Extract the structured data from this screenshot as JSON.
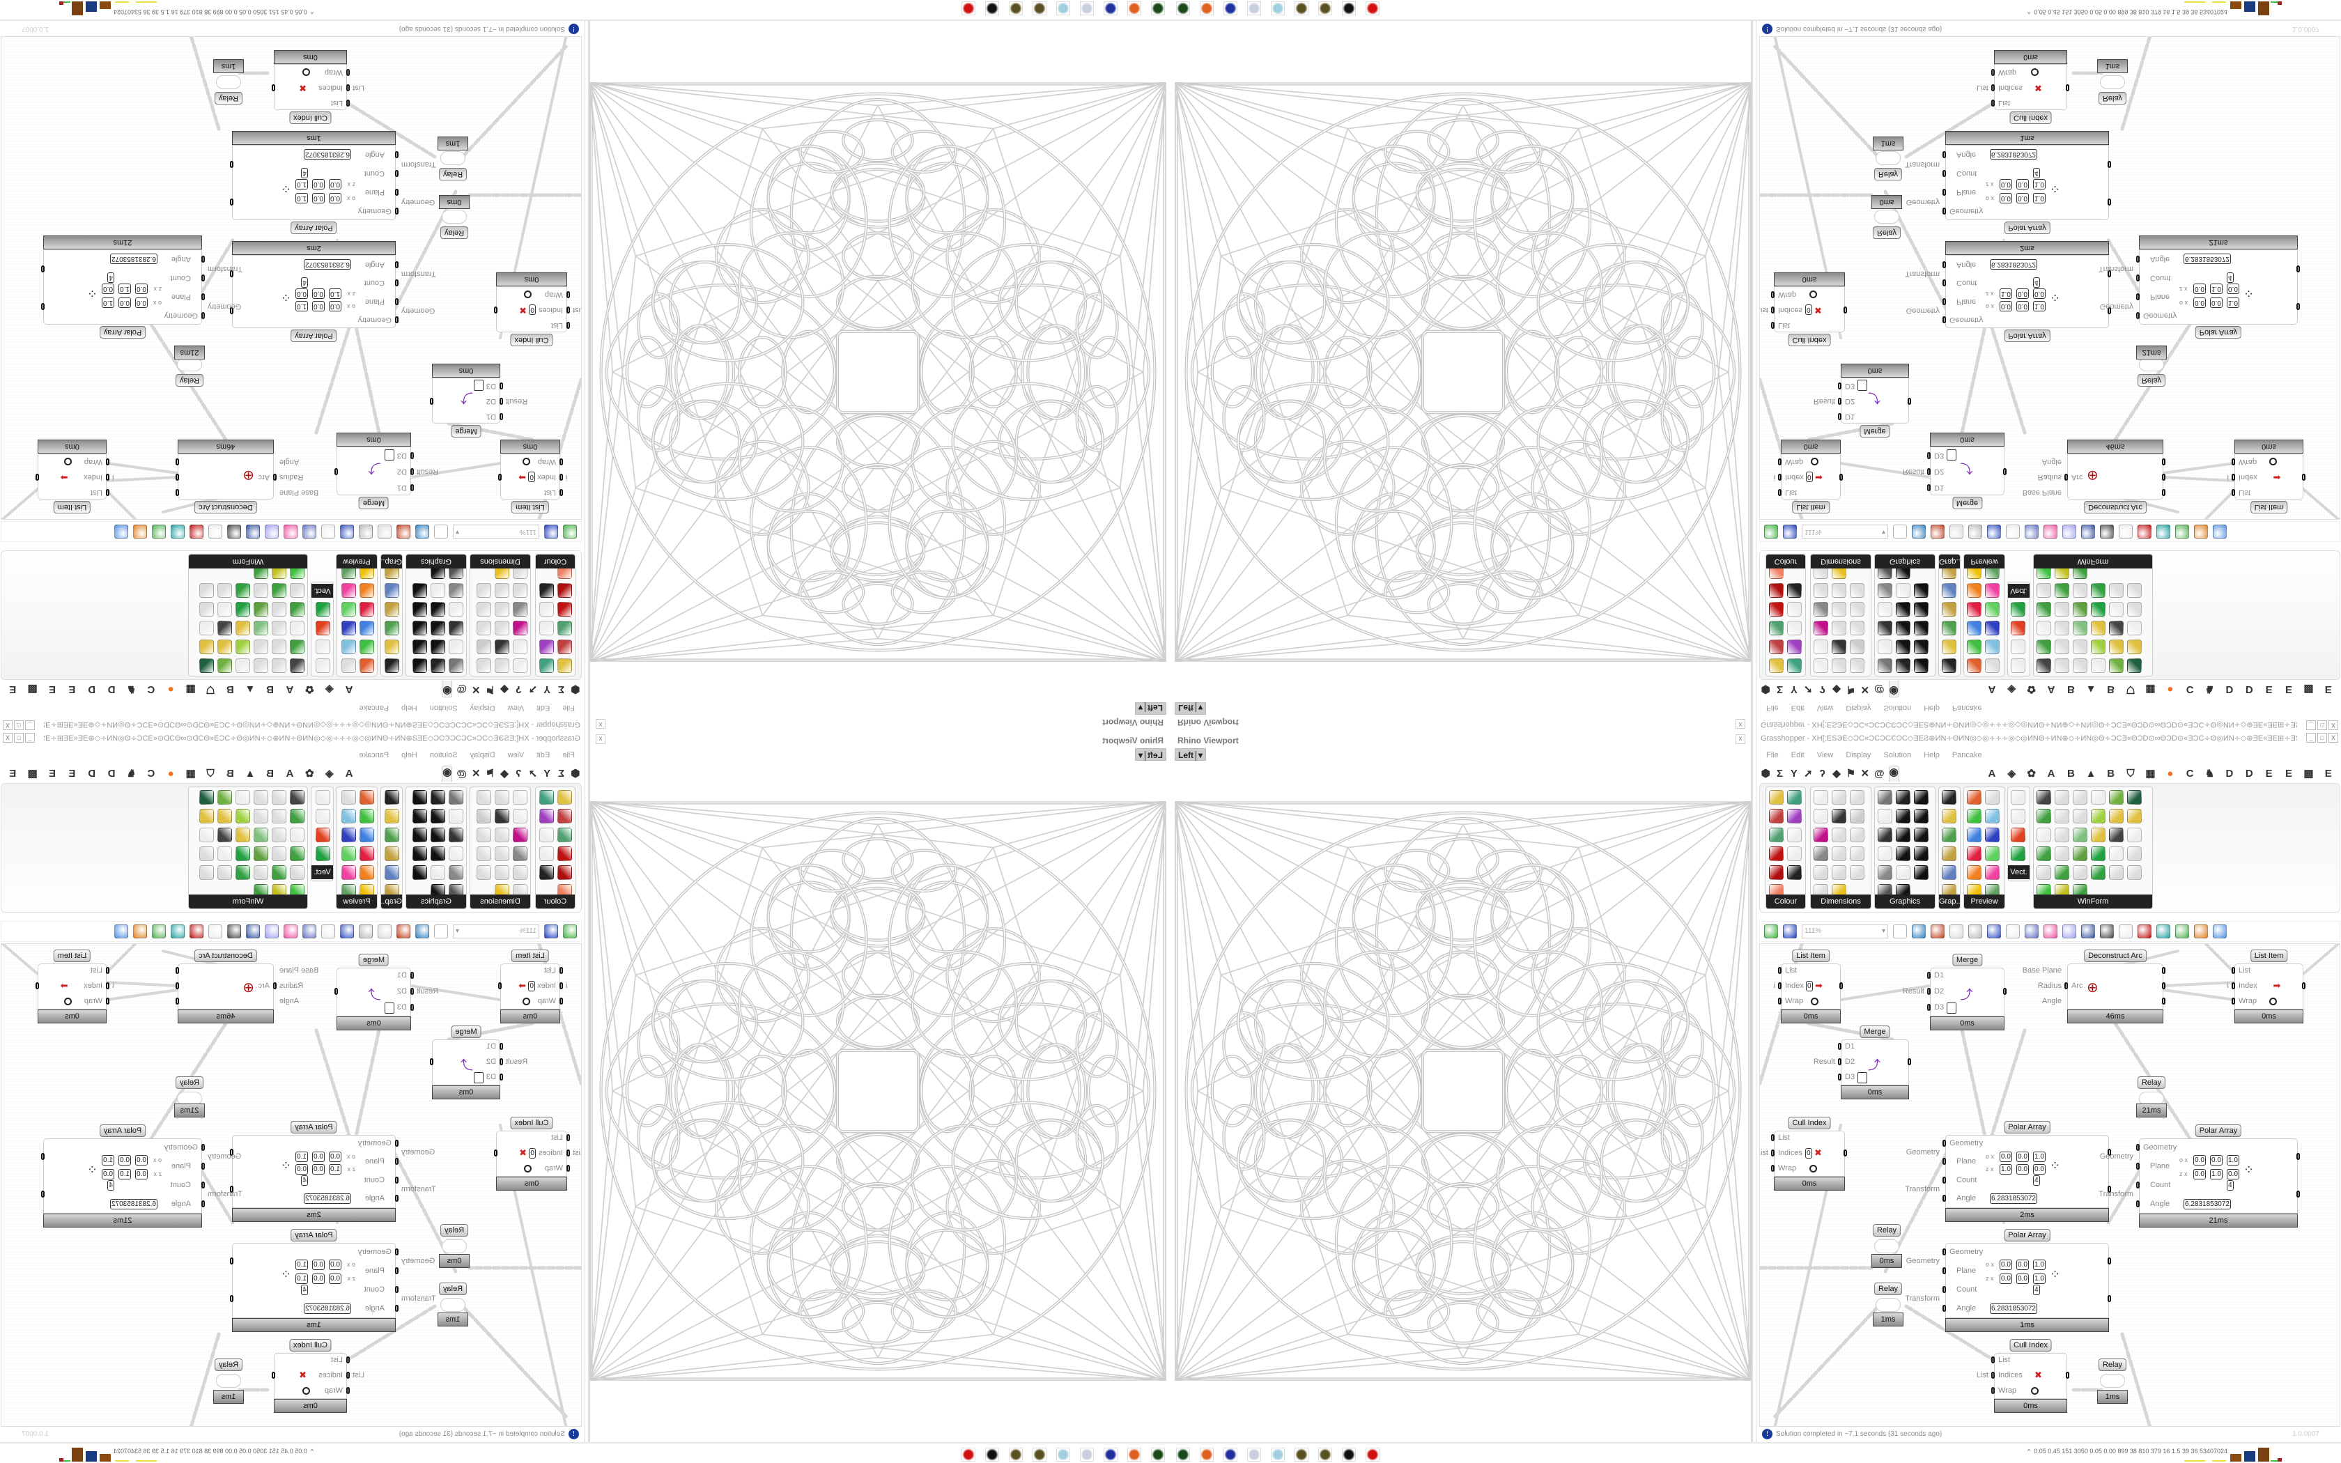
{
  "viewport": {
    "title": "Rhino Viewport",
    "view": "Left",
    "close": "x"
  },
  "grasshopper": {
    "title": "Grasshopper - XH[;ESЭE◇ƆC«ƆCƆC©ƆC◇ƎEƧ⊕ИN∻ΘИN◎◇◎∻∻∻◎◇◎ИNΘ∻ИN⊕◇∻ИN◎Θ∻ƆCƎ«ΘƆD⊙∞ΘƆD⊙«ƎƆC∻Θ◎ИN∻◇⊕ƎE«ƎE⊞∻ƎS∻⊞ƎE«ƎE⊕◇∻«ƆDƎE⊞∻∻ƆC...",
    "window_buttons": [
      "_",
      "□",
      "X"
    ],
    "menu": [
      "File",
      "Edit",
      "View",
      "Display",
      "Solution",
      "Help",
      "Pancake"
    ],
    "tabs": [
      {
        "icon": "hexagon",
        "glyph": "⬢"
      },
      {
        "icon": "sigma",
        "glyph": "Σ"
      },
      {
        "icon": "y-fork",
        "glyph": "Y"
      },
      {
        "icon": "arrow",
        "glyph": "➚"
      },
      {
        "icon": "hook",
        "glyph": "ʔ"
      },
      {
        "icon": "surface",
        "glyph": "◆"
      },
      {
        "icon": "flag",
        "glyph": "⚑"
      },
      {
        "icon": "cross",
        "glyph": "✕"
      },
      {
        "icon": "curl",
        "glyph": "@"
      },
      {
        "icon": "eye",
        "glyph": "◉",
        "active": true
      },
      {
        "icon": "letter-a",
        "glyph": "A"
      },
      {
        "icon": "gem",
        "glyph": "◈"
      },
      {
        "icon": "gear",
        "glyph": "✿"
      },
      {
        "icon": "letter-a",
        "glyph": "A"
      },
      {
        "icon": "letter-b",
        "glyph": "B"
      },
      {
        "icon": "mountain",
        "glyph": "▲"
      },
      {
        "icon": "letter-b",
        "glyph": "B"
      },
      {
        "icon": "shield",
        "glyph": "⛉"
      },
      {
        "icon": "grid",
        "glyph": "▦"
      },
      {
        "icon": "orange-circle",
        "glyph": "●",
        "color": "#f07020"
      },
      {
        "icon": "letter-c",
        "glyph": "C"
      },
      {
        "icon": "bird",
        "glyph": "♞"
      },
      {
        "icon": "letter-d",
        "glyph": "D"
      },
      {
        "icon": "letter-d",
        "glyph": "D"
      },
      {
        "icon": "letter-e",
        "glyph": "E"
      },
      {
        "icon": "letter-e",
        "glyph": "E"
      },
      {
        "icon": "dotted-square",
        "glyph": "▩"
      },
      {
        "icon": "letter-e",
        "glyph": "E"
      }
    ],
    "ribbon": [
      {
        "label": "Colour",
        "cols": 2,
        "icons": [
          [
            "colour-wheel",
            "#e0c040"
          ],
          [
            "gradient",
            "#40a080"
          ],
          [
            "colour-cube",
            "#c04040"
          ],
          [
            "colour-triangle",
            "#a040c0"
          ],
          [
            "colour-rgb-cube",
            "#50a070"
          ],
          [
            "hsl",
            "#eee"
          ],
          [
            "red-sphere",
            "#c01010"
          ],
          [
            "hsv",
            "#eee"
          ],
          [
            "red-sphere-2",
            "#b01010"
          ],
          [
            "prism",
            "#222"
          ],
          [
            "gradient-swatch",
            "#f08060"
          ]
        ]
      },
      {
        "label": "Dimensions",
        "cols": 3,
        "icons": [
          [
            "tag-delete",
            "#eee"
          ],
          [
            "dimension-linear",
            "#ddd"
          ],
          [
            "dimension-angle",
            "#ddd"
          ],
          [
            "tag",
            "#eee"
          ],
          [
            "pen",
            "#333"
          ],
          [
            "box-dim",
            "#ccc"
          ],
          [
            "magenta-swatch",
            "#c0108a"
          ],
          [
            "dim-ordinate",
            "#ddd"
          ],
          [
            "dim-aligned",
            "#ddd"
          ],
          [
            "grid-mesh",
            "#888"
          ],
          [
            "dim-angular",
            "#ddd"
          ],
          [
            "dim-arrow",
            "#ddd"
          ],
          [
            "dim-chain",
            "#ddd"
          ],
          [
            "dim-radius",
            "#ddd"
          ],
          [
            "dim-line",
            "#ddd"
          ],
          [
            "dim-diagonal",
            "#ddd"
          ],
          [
            "dim-triangle",
            "#e8c020"
          ]
        ]
      },
      {
        "label": "Graphics",
        "cols": 3,
        "icons": [
          [
            "circle",
            "#777"
          ],
          [
            "text-circle",
            "#222"
          ],
          [
            "eye-circle",
            "#111"
          ],
          [
            "dotted-circle",
            "#eee"
          ],
          [
            "t-circle",
            "#111"
          ],
          [
            "square-circle",
            "#111"
          ],
          [
            "blur-circle",
            "#333"
          ],
          [
            "list-circle",
            "#111"
          ],
          [
            "asterisk-circle",
            "#111"
          ],
          [
            "ring",
            "#eee"
          ],
          [
            "link-circle",
            "#111"
          ],
          [
            "save-image",
            "#111"
          ],
          [
            "gradient-circle",
            "#888"
          ],
          [
            "dotted-ring",
            "#eee"
          ],
          [
            "save-asterisk",
            "#111"
          ],
          [
            "sphere-gradient",
            "#555"
          ],
          [
            "mountain-circle",
            "#111"
          ]
        ]
      },
      {
        "label": "Grap...",
        "cols": 1,
        "icons": [
          [
            "histogram",
            "#222"
          ],
          [
            "legend",
            "#e0c040"
          ],
          [
            "pie-chart",
            "#50a050"
          ],
          [
            "line-graph",
            "#c0a040"
          ],
          [
            "images",
            "#6080c0"
          ],
          [
            "line-chart",
            "#c0a040"
          ]
        ]
      },
      {
        "label": "Preview",
        "cols": 2,
        "icons": [
          [
            "egg",
            "#e06030"
          ],
          [
            "camera",
            "#ddd"
          ],
          [
            "sphere-image",
            "#40c040"
          ],
          [
            "trees",
            "#80c0e0"
          ],
          [
            "molecules",
            "#4080e0"
          ],
          [
            "heart-mesh",
            "#3040c0"
          ],
          [
            "red-blobs",
            "#e02040"
          ],
          [
            "heart-green",
            "#60d060"
          ],
          [
            "gradient-box",
            "#f08020"
          ],
          [
            "hearts",
            "#f040a0"
          ],
          [
            "sl-script",
            "#f0c000"
          ],
          [
            "tree-image",
            "#60a060"
          ]
        ]
      },
      {
        "label": "Vect.",
        "cols": 1,
        "icons": [
          [
            "sort-numbers",
            "#eee"
          ],
          [
            "points-path",
            "#eee"
          ],
          [
            "arrows-red",
            "#e04020"
          ],
          [
            "arrows-green",
            "#20a040"
          ]
        ]
      },
      {
        "label": "WinForm",
        "cols": 6,
        "icons": [
          [
            "label-a",
            "#444"
          ],
          [
            "list-box",
            "#ddd"
          ],
          [
            "text-box",
            "#ddd"
          ],
          [
            "label-box",
            "#eee"
          ],
          [
            "chart",
            "#70b040"
          ],
          [
            "grid-panel",
            "#206040"
          ],
          [
            "hatch",
            "#40a040"
          ],
          [
            "slider-box",
            "#ddd"
          ],
          [
            "slider",
            "#ddd"
          ],
          [
            "grid-green",
            "#a0d040"
          ],
          [
            "pacman",
            "#e0c040"
          ],
          [
            "layout",
            "#e0c040"
          ],
          [
            "checkbox",
            "#eee"
          ],
          [
            "text-lines",
            "#ddd"
          ],
          [
            "trees-box",
            "#80c080"
          ],
          [
            "pie-box",
            "#e0c040"
          ],
          [
            "person",
            "#444"
          ],
          [
            "text-a",
            "#eee"
          ],
          [
            "progress",
            "#40a040"
          ],
          [
            "button-hash",
            "#ddd"
          ],
          [
            "cube-pack",
            "#60a040"
          ],
          [
            "split",
            "#20a040"
          ],
          [
            "text-a-plus",
            "#eee"
          ],
          [
            "ok-button",
            "#ddd"
          ],
          [
            "toggle",
            "#ddd"
          ],
          [
            "bar",
            "#40a040"
          ],
          [
            "list-bullets",
            "#ddd"
          ],
          [
            "green-box",
            "#30a040"
          ],
          [
            "calendar",
            "#ddd"
          ],
          [
            "vslider",
            "#ddd"
          ],
          [
            "battery",
            "#40c040"
          ],
          [
            "bar-chart",
            "#c0c020"
          ],
          [
            "door",
            "#40a040"
          ]
        ]
      }
    ],
    "toolbar": {
      "zoom": "111%",
      "icons": [
        [
          "new-file",
          "#40b040"
        ],
        [
          "save",
          "#2040c0"
        ],
        [
          "zoom-field",
          ""
        ],
        [
          "zoom-extents",
          "#fff"
        ],
        [
          "eye",
          "#3080c0"
        ],
        [
          "sketch-pen",
          "#c04020"
        ],
        [
          "relay-box",
          "#ddd"
        ],
        [
          "email",
          "#bbb"
        ],
        [
          "gha",
          "#3050c0"
        ],
        [
          "image-doc",
          "#eee"
        ],
        [
          "search-s",
          "#6070c0"
        ],
        [
          "gift-box",
          "#f050a0"
        ],
        [
          "bulb",
          "#a0a0f0"
        ],
        [
          "cross-wires",
          "#3050a0"
        ],
        [
          "bell",
          "#444"
        ],
        [
          "ring-shape",
          "#eee"
        ],
        [
          "red-gem",
          "#c01010"
        ],
        [
          "teal-shape",
          "#20a0a0"
        ],
        [
          "green-shape",
          "#50b050"
        ],
        [
          "orange-sphere",
          "#e08020"
        ],
        [
          "blue-sphere",
          "#5090e0"
        ]
      ]
    },
    "canvas": {
      "nodes": [
        {
          "kind": "listitem",
          "title": "List Item",
          "inputs": [
            "List",
            "Index",
            "Wrap"
          ],
          "outputs": [
            "i"
          ],
          "index": "0",
          "time": "0ms"
        },
        {
          "kind": "merge",
          "title": "Merge",
          "inputs": [
            "D1",
            "D2",
            "D3"
          ],
          "outputs": [
            "Result"
          ],
          "time": "0ms"
        },
        {
          "kind": "arc",
          "title": "Deconstruct Arc",
          "inputs": [
            "Arc"
          ],
          "outputs": [
            "Base Plane",
            "Radius",
            "Angle"
          ],
          "time": "46ms"
        },
        {
          "kind": "listitem",
          "title": "List Item",
          "inputs": [
            "List",
            "Index",
            "Wrap"
          ],
          "outputs": [
            "i"
          ],
          "time": "0ms"
        },
        {
          "kind": "merge",
          "title": "Merge",
          "inputs": [
            "D1",
            "D2",
            "D3"
          ],
          "outputs": [
            "Result"
          ],
          "time": "0ms"
        },
        {
          "kind": "cull",
          "title": "Cull Index",
          "inputs": [
            "List",
            "Indices",
            "Wrap"
          ],
          "outputs": [
            "List"
          ],
          "index": "0",
          "time": "0ms"
        },
        {
          "kind": "polar",
          "title": "Polar Array",
          "inputs": [
            "Geometry",
            "Plane",
            "Count",
            "Angle"
          ],
          "outputs": [
            "Geometry",
            "Transform"
          ],
          "plane_o": [
            "0.0",
            "0.0",
            "1.0"
          ],
          "plane_z": [
            "1.0",
            "0.0",
            "0.0"
          ],
          "count": "4",
          "angle": "6.2831853072",
          "time": "2ms"
        },
        {
          "kind": "relay",
          "title": "Relay",
          "time": "21ms"
        },
        {
          "kind": "polar",
          "title": "Polar Array",
          "inputs": [
            "Geometry",
            "Plane",
            "Count",
            "Angle"
          ],
          "outputs": [
            "Geometry",
            "Transform"
          ],
          "plane_o": [
            "0.0",
            "0.0",
            "1.0"
          ],
          "plane_z": [
            "0.0",
            "1.0",
            "0.0"
          ],
          "count": "4",
          "angle": "6.2831853072",
          "time": "21ms"
        },
        {
          "kind": "relay",
          "title": "Relay",
          "time": "0ms"
        },
        {
          "kind": "polar",
          "title": "Polar Array",
          "inputs": [
            "Geometry",
            "Plane",
            "Count",
            "Angle"
          ],
          "outputs": [
            "Geometry",
            "Transform"
          ],
          "plane_o": [
            "0.0",
            "0.0",
            "1.0"
          ],
          "plane_z": [
            "0.0",
            "0.0",
            "1.0"
          ],
          "count": "4",
          "angle": "6.2831853072",
          "time": "1ms"
        },
        {
          "kind": "relay",
          "title": "Relay",
          "time": "1ms"
        },
        {
          "kind": "cull",
          "title": "Cull Index",
          "inputs": [
            "List",
            "Indices",
            "Wrap"
          ],
          "outputs": [
            "List"
          ],
          "time": "0ms"
        },
        {
          "kind": "relay",
          "title": "Relay",
          "time": "1ms"
        }
      ]
    },
    "status": {
      "message": "Solution completed in ~7,1 seconds (31 seconds ago)",
      "version": "1.0.0007"
    }
  },
  "taskbar": {
    "apps": [
      [
        "terminal",
        "#1a4a1a"
      ],
      [
        "firefox",
        "#e06020"
      ],
      [
        "floppy-64",
        "#2030a0"
      ],
      [
        "scroll",
        "#c8d0e0"
      ],
      [
        "notepad",
        "#a0d0e0"
      ],
      [
        "egg-launcher",
        "#5a5020"
      ],
      [
        "egg-launcher-2",
        "#5a5020"
      ],
      [
        "wolf",
        "#111"
      ],
      [
        "red-badge",
        "#d01010"
      ]
    ],
    "perf": "0.05 0.45 151 3050 0.05 0.00 899 38 810 379 16 1.5 39 36 53407024",
    "tray_arrow": "^"
  }
}
